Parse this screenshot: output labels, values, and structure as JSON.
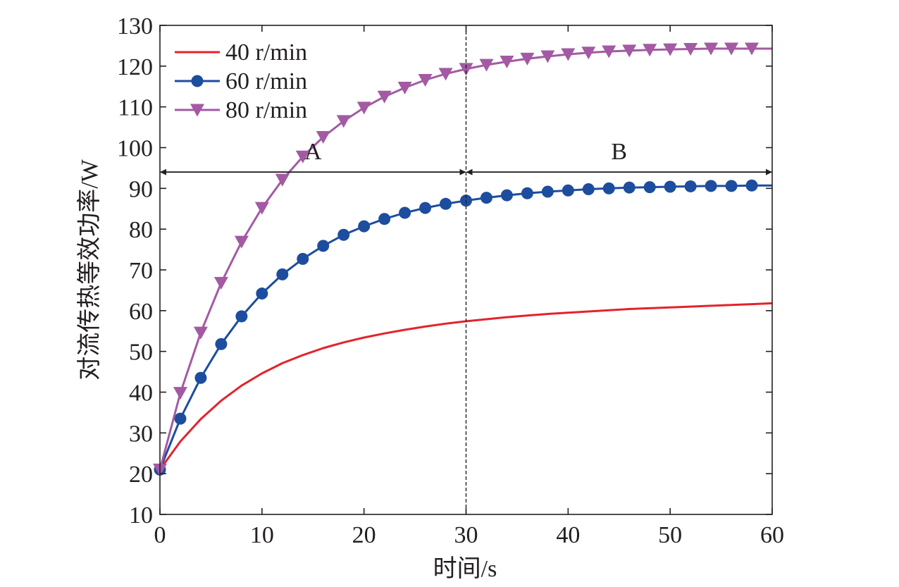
{
  "chart_data": {
    "type": "line",
    "xlabel": "时间/s",
    "ylabel": "对流传热等效功率/W",
    "xlim": [
      0,
      60
    ],
    "ylim": [
      10,
      130
    ],
    "xticks": [
      0,
      10,
      20,
      30,
      40,
      50,
      60
    ],
    "yticks": [
      10,
      20,
      30,
      40,
      50,
      60,
      70,
      80,
      90,
      100,
      110,
      120,
      130
    ],
    "grid": false,
    "legend_position": "top-left",
    "x": [
      0,
      2,
      4,
      6,
      8,
      10,
      12,
      14,
      16,
      18,
      20,
      22,
      24,
      26,
      28,
      30,
      32,
      34,
      36,
      38,
      40,
      42,
      44,
      46,
      48,
      50,
      52,
      54,
      56,
      58,
      60
    ],
    "series": [
      {
        "name": "40 r/min",
        "color": "#e3232b",
        "marker": "none",
        "values": [
          21,
          27.9,
          33.4,
          37.9,
          41.6,
          44.6,
          47.1,
          49.1,
          50.8,
          52.2,
          53.4,
          54.4,
          55.3,
          56.1,
          56.8,
          57.4,
          57.9,
          58.4,
          58.8,
          59.2,
          59.5,
          59.8,
          60.1,
          60.4,
          60.6,
          60.8,
          61.0,
          61.2,
          61.4,
          61.6,
          61.8
        ]
      },
      {
        "name": "60 r/min",
        "color": "#1d4d9e",
        "marker": "circle",
        "values": [
          21,
          33.5,
          43.5,
          51.8,
          58.6,
          64.2,
          68.9,
          72.7,
          75.9,
          78.6,
          80.7,
          82.5,
          84.0,
          85.2,
          86.2,
          87.0,
          87.7,
          88.3,
          88.8,
          89.2,
          89.5,
          89.8,
          90.0,
          90.2,
          90.3,
          90.4,
          90.5,
          90.6,
          90.6,
          90.7,
          90.7
        ]
      },
      {
        "name": "80 r/min",
        "color": "#a35aa3",
        "marker": "triangle-down",
        "values": [
          21,
          39.8,
          54.6,
          66.8,
          76.9,
          85.2,
          92.1,
          97.8,
          102.6,
          106.5,
          109.8,
          112.5,
          114.7,
          116.6,
          118.1,
          119.3,
          120.3,
          121.1,
          121.8,
          122.4,
          122.9,
          123.3,
          123.6,
          123.8,
          124.0,
          124.1,
          124.2,
          124.3,
          124.3,
          124.3,
          124.3
        ]
      }
    ],
    "annotations": {
      "divider_x": 30,
      "arrow_y": 94,
      "regions": [
        {
          "label": "A",
          "from": 0,
          "to": 30
        },
        {
          "label": "B",
          "from": 30,
          "to": 60
        }
      ]
    }
  }
}
